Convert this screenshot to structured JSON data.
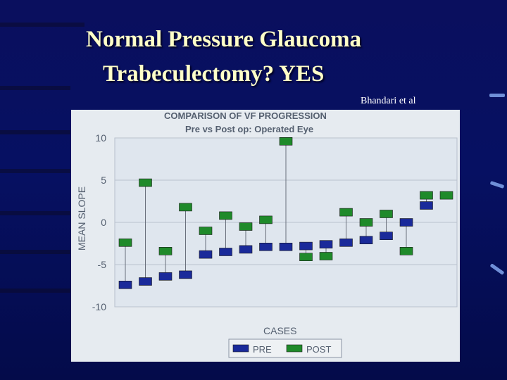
{
  "slide": {
    "title_line1": "Normal Pressure Glaucoma",
    "title_line2": "Trabeculectomy? YES",
    "credit": "Bhandari et al"
  },
  "colors": {
    "background": "#07105c",
    "title": "#ffffc8",
    "pre": "#1a2a9a",
    "post": "#1f8a2a",
    "chart_bg": "#e6ebf0"
  },
  "chart_data": {
    "type": "scatter",
    "title": "COMPARISON OF VF PROGRESSION",
    "subtitle": "Pre vs Post op: Operated Eye",
    "xlabel": "CASES",
    "ylabel": "MEAN SLOPE",
    "ylim": [
      -10,
      10
    ],
    "yticks": [
      10,
      5,
      0,
      -5,
      -10
    ],
    "grid": true,
    "legend_position": "bottom-right",
    "series": [
      {
        "name": "PRE",
        "color": "#1a2a9a",
        "values": [
          -7.4,
          -7.0,
          -6.4,
          -6.2,
          -3.8,
          -3.5,
          -3.2,
          -2.9,
          -2.9,
          -2.8,
          -2.6,
          -2.4,
          -2.1,
          -1.6,
          0.0,
          2.0,
          null
        ]
      },
      {
        "name": "POST",
        "color": "#1f8a2a",
        "values": [
          -2.4,
          4.7,
          -3.4,
          1.8,
          -1.0,
          0.8,
          -0.5,
          0.3,
          9.6,
          -4.1,
          -4.0,
          1.2,
          0.0,
          1.0,
          -3.4,
          3.2,
          3.2
        ]
      }
    ]
  }
}
